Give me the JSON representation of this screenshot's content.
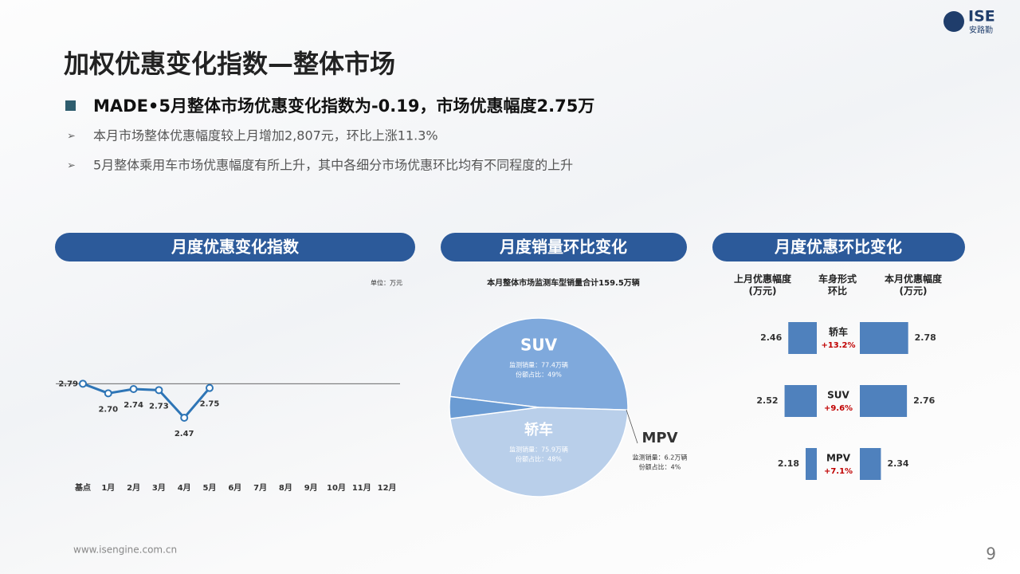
{
  "logo": {
    "mark": "ISE",
    "name": "安路勤"
  },
  "header": {
    "title": "加权优惠变化指数—整体市场",
    "headline": "MADE•5月整体市场优惠变化指数为-0.19，市场优惠幅度2.75万",
    "bullets": [
      "本月市场整体优惠幅度较上月增加2,807元，环比上涨11.3%",
      "5月整体乘用车市场优惠幅度有所上升，其中各细分市场优惠环比均有不同程度的上升"
    ]
  },
  "sections": [
    "月度优惠变化指数",
    "月度销量环比变化",
    "月度优惠环比变化"
  ],
  "chart_data": [
    {
      "type": "line",
      "unit": "单位：万元",
      "categories": [
        "基点",
        "1月",
        "2月",
        "3月",
        "4月",
        "5月",
        "6月",
        "7月",
        "8月",
        "9月",
        "10月",
        "11月",
        "12月"
      ],
      "values": [
        2.79,
        2.7,
        2.74,
        2.73,
        2.47,
        2.75,
        null,
        null,
        null,
        null,
        null,
        null,
        null
      ],
      "value_labels": [
        "2.79",
        "2.70",
        "2.74",
        "2.73",
        "2.47",
        "2.75",
        null,
        null,
        null,
        null,
        null,
        null,
        null
      ],
      "color": "#2e75b6",
      "ylim": [
        1.9,
        3.7
      ]
    },
    {
      "type": "pie",
      "title": "本月整体市场监测车型销量合计159.5万辆",
      "categories": [
        "SUV",
        "轿车",
        "MPV"
      ],
      "values": [
        49,
        48,
        4
      ],
      "value_labels": [
        "份额占比：49%",
        "份额占比：48%",
        "份额占比：4%"
      ],
      "details": [
        "监测销量：77.4万辆",
        "监测销量：75.9万辆",
        "监测销量：6.2万辆"
      ],
      "colors": [
        "#7fa9dc",
        "#b9cfea",
        "#6a9bd3"
      ]
    },
    {
      "type": "bar",
      "categories": [
        "轿车",
        "SUV",
        "MPV"
      ],
      "color": "#4f81bd",
      "xlim": [
        2.0,
        2.9
      ],
      "series": [
        {
          "name": "上月优惠幅度\n(万元)",
          "values": [
            2.46,
            2.52,
            2.18
          ]
        },
        {
          "name": "本月优惠幅度\n(万元)",
          "values": [
            2.78,
            2.76,
            2.34
          ]
        }
      ],
      "change": {
        "name": "车身形式\n环比",
        "values": [
          13.2,
          9.6,
          7.1
        ],
        "value_labels": [
          "+13.2%",
          "+9.6%",
          "+7.1%"
        ]
      }
    }
  ],
  "footer": {
    "url": "www.isengine.com.cn",
    "page": "9"
  }
}
